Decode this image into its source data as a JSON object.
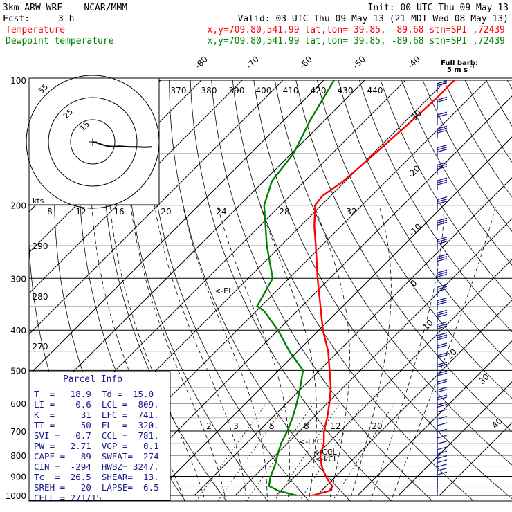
{
  "header": {
    "model": "3km ARW-WRF -- NCAR/MMM",
    "init": "Init: 00 UTC Thu 09 May 13",
    "fcst_label": "Fcst:",
    "fcst_value": "3 h",
    "valid": "Valid: 03 UTC Thu 09 May 13 (21 MDT Wed 08 May 13)",
    "temp_label": "Temperature",
    "dew_label": "Dewpoint temperature",
    "temp_loc": "x,y=709.80,541.99   lat,lon= 39.85, -89.68   stn=SPI ,72439",
    "dew_loc": "x,y=709.80,541.99   lat,lon= 39.85, -89.68   stn=SPI ,72439"
  },
  "barb_label_1": "Full barb:",
  "barb_label_2": "5 m s",
  "hodo_units": "kts",
  "colors": {
    "temperature": "#ff0000",
    "dewpoint": "#008000",
    "parcel_text": "#1a1a8c"
  },
  "parcel": {
    "title": "Parcel Info",
    "rows": [
      "T  =   18.9  Td =  15.0",
      "LI =   -0.6  LCL =  809.",
      "K  =     31  LFC =  741.",
      "TT =     50  EL  =  320.",
      "SVI =   0.7  CCL =  781.",
      "PW =   2.71  VGP =   0.1",
      "CAPE =   89  SWEAT=  274",
      "CIN =  -294  HWBZ= 3247.",
      "Tc  =  26.5  SHEAR=  13.",
      "SREH =   20  LAPSE=  6.5",
      "CELL = 271/15"
    ]
  },
  "levels_text": {
    "el": "<-EL",
    "lfc": "<-LFC",
    "ccl": "<-CCL",
    "lcl": "<-LCL"
  },
  "chart_data": {
    "type": "line",
    "chart_kind": "skew-T log-P sounding",
    "pressure_axis": {
      "scale": "log",
      "range_hPa": [
        1000,
        100
      ],
      "ticks": [
        "100",
        "200",
        "300",
        "400",
        "500",
        "600",
        "700",
        "800",
        "900",
        "1000"
      ]
    },
    "isotherm_labels": [
      "-80",
      "-70",
      "-60",
      "-50",
      "-40",
      "-30",
      "-20",
      "-10",
      "0",
      "10",
      "20",
      "30",
      "40"
    ],
    "theta_labels": [
      "370",
      "380",
      "390",
      "400",
      "410",
      "420",
      "430",
      "440",
      "290",
      "280",
      "270"
    ],
    "mixing_ratio_labels": [
      "2",
      "3",
      "5",
      "8",
      "12",
      "20"
    ],
    "hodograph_speed_labels": [
      "8",
      "12",
      "16",
      "20",
      "24",
      "28",
      "32"
    ],
    "hodograph_ring_labels": [
      "55",
      "25",
      "15"
    ],
    "series": [
      {
        "name": "Temperature",
        "color": "#ff0000",
        "points": [
          [
            1000,
            18.9
          ],
          [
            975,
            22.0
          ],
          [
            950,
            21.5
          ],
          [
            925,
            19.5
          ],
          [
            900,
            17.5
          ],
          [
            850,
            14.0
          ],
          [
            800,
            11.0
          ],
          [
            750,
            9.0
          ],
          [
            700,
            6.0
          ],
          [
            650,
            3.5
          ],
          [
            600,
            0.5
          ],
          [
            550,
            -3.0
          ],
          [
            500,
            -7.5
          ],
          [
            450,
            -12.5
          ],
          [
            400,
            -19.0
          ],
          [
            350,
            -25.5
          ],
          [
            300,
            -33.0
          ],
          [
            250,
            -41.5
          ],
          [
            225,
            -46.5
          ],
          [
            200,
            -51.5
          ],
          [
            190,
            -52.0
          ],
          [
            175,
            -50.5
          ],
          [
            150,
            -49.5
          ],
          [
            125,
            -48.5
          ],
          [
            110,
            -48.0
          ],
          [
            100,
            -48.0
          ]
        ]
      },
      {
        "name": "Dewpoint temperature",
        "color": "#008000",
        "points": [
          [
            1000,
            15.0
          ],
          [
            975,
            9.5
          ],
          [
            950,
            6.0
          ],
          [
            925,
            5.0
          ],
          [
            900,
            4.0
          ],
          [
            850,
            2.5
          ],
          [
            800,
            0.5
          ],
          [
            750,
            -1.5
          ],
          [
            700,
            -3.0
          ],
          [
            650,
            -5.0
          ],
          [
            600,
            -7.5
          ],
          [
            550,
            -10.5
          ],
          [
            500,
            -14.0
          ],
          [
            450,
            -22.0
          ],
          [
            400,
            -30.0
          ],
          [
            360,
            -38.0
          ],
          [
            350,
            -41.0
          ],
          [
            300,
            -44.0
          ],
          [
            250,
            -53.5
          ],
          [
            200,
            -64.0
          ],
          [
            175,
            -68.0
          ],
          [
            150,
            -69.5
          ],
          [
            125,
            -73.5
          ],
          [
            100,
            -77.5
          ]
        ]
      }
    ],
    "wind_profile": [
      {
        "p": 980,
        "dir": 200,
        "spd": 3
      },
      {
        "p": 960,
        "dir": 210,
        "spd": 4
      },
      {
        "p": 940,
        "dir": 220,
        "spd": 4
      },
      {
        "p": 920,
        "dir": 240,
        "spd": 5
      },
      {
        "p": 900,
        "dir": 250,
        "spd": 6
      },
      {
        "p": 880,
        "dir": 255,
        "spd": 6
      },
      {
        "p": 860,
        "dir": 260,
        "spd": 7
      },
      {
        "p": 840,
        "dir": 265,
        "spd": 7
      },
      {
        "p": 820,
        "dir": 265,
        "spd": 8
      },
      {
        "p": 800,
        "dir": 270,
        "spd": 8
      },
      {
        "p": 775,
        "dir": 270,
        "spd": 9
      },
      {
        "p": 750,
        "dir": 272,
        "spd": 10
      },
      {
        "p": 725,
        "dir": 272,
        "spd": 11
      },
      {
        "p": 700,
        "dir": 275,
        "spd": 12
      },
      {
        "p": 675,
        "dir": 275,
        "spd": 13
      },
      {
        "p": 650,
        "dir": 275,
        "spd": 14
      },
      {
        "p": 625,
        "dir": 278,
        "spd": 15
      },
      {
        "p": 600,
        "dir": 278,
        "spd": 16
      },
      {
        "p": 575,
        "dir": 280,
        "spd": 18
      },
      {
        "p": 550,
        "dir": 280,
        "spd": 20
      },
      {
        "p": 525,
        "dir": 280,
        "spd": 21
      },
      {
        "p": 500,
        "dir": 282,
        "spd": 22
      },
      {
        "p": 475,
        "dir": 282,
        "spd": 23
      },
      {
        "p": 450,
        "dir": 282,
        "spd": 24
      },
      {
        "p": 425,
        "dir": 284,
        "spd": 25
      },
      {
        "p": 400,
        "dir": 284,
        "spd": 26
      },
      {
        "p": 375,
        "dir": 284,
        "spd": 27
      },
      {
        "p": 350,
        "dir": 285,
        "spd": 28
      },
      {
        "p": 325,
        "dir": 285,
        "spd": 29
      },
      {
        "p": 300,
        "dir": 285,
        "spd": 30
      },
      {
        "p": 275,
        "dir": 285,
        "spd": 31
      },
      {
        "p": 250,
        "dir": 286,
        "spd": 31
      },
      {
        "p": 225,
        "dir": 286,
        "spd": 30
      },
      {
        "p": 200,
        "dir": 285,
        "spd": 29
      },
      {
        "p": 180,
        "dir": 285,
        "spd": 28
      },
      {
        "p": 165,
        "dir": 284,
        "spd": 27
      },
      {
        "p": 150,
        "dir": 284,
        "spd": 26
      },
      {
        "p": 135,
        "dir": 283,
        "spd": 25
      },
      {
        "p": 125,
        "dir": 283,
        "spd": 24
      },
      {
        "p": 115,
        "dir": 282,
        "spd": 23
      },
      {
        "p": 105,
        "dir": 282,
        "spd": 22
      }
    ],
    "hodograph_trace": [
      [
        0.0,
        0.0
      ],
      [
        1.0,
        -1.5
      ],
      [
        2.5,
        -4.5
      ],
      [
        4.0,
        -7.0
      ],
      [
        5.5,
        -7.5
      ],
      [
        7.0,
        -7.0
      ],
      [
        8.5,
        -7.5
      ],
      [
        10.0,
        -8.0
      ],
      [
        12.0,
        -8.0
      ],
      [
        13.5,
        -8.5
      ],
      [
        15.5,
        -8.0
      ]
    ]
  }
}
